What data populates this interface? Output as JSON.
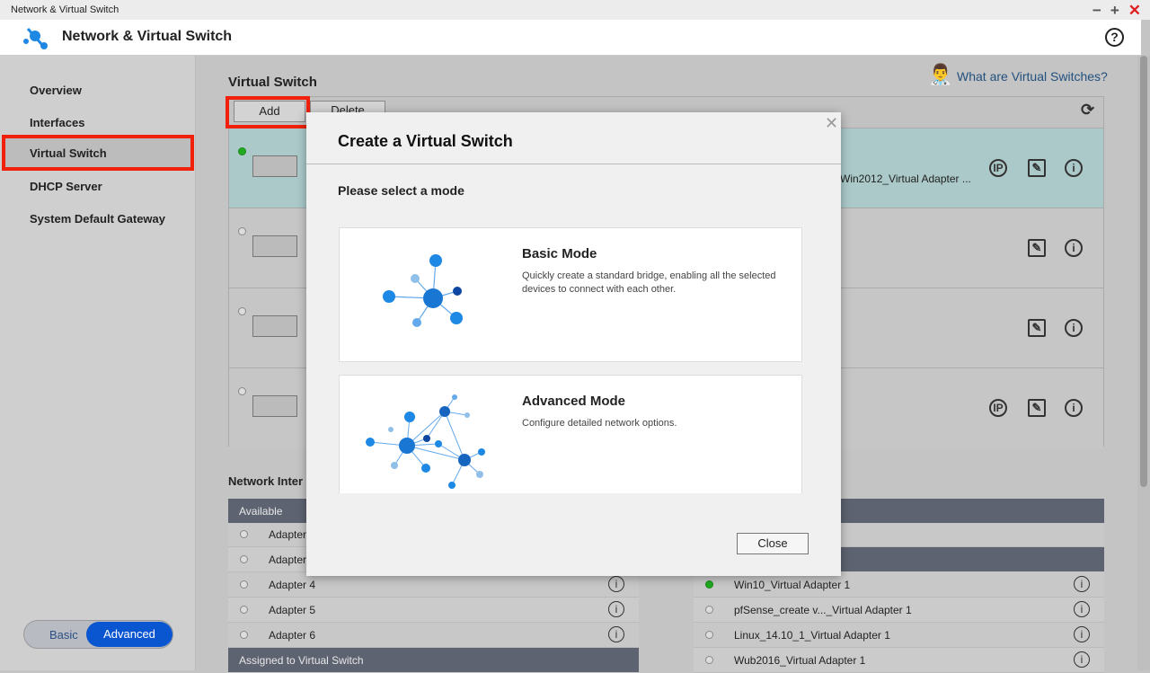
{
  "window": {
    "title": "Network & Virtual Switch",
    "controls": [
      "−",
      "+",
      "✕"
    ]
  },
  "header": {
    "app_title": "Network & Virtual Switch",
    "help": "?"
  },
  "sidebar": {
    "items": [
      {
        "label": "Overview"
      },
      {
        "label": "Interfaces"
      },
      {
        "label": "Virtual Switch",
        "selected": true
      },
      {
        "label": "DHCP Server"
      },
      {
        "label": "System Default Gateway"
      }
    ],
    "mode_toggle": {
      "basic": "Basic",
      "advanced": "Advanced",
      "active": "Advanced"
    }
  },
  "main": {
    "title": "Virtual Switch",
    "help_link": "What are Virtual Switches?",
    "toolbar": {
      "add": "Add",
      "delete": "Delete"
    },
    "switches": [
      {
        "status": "on",
        "adapter_text": "Win2012_Virtual Adapter ...",
        "ip_icon": true
      },
      {
        "status": "off",
        "ip_icon": false
      },
      {
        "status": "off",
        "ip_icon": false
      },
      {
        "status": "off",
        "ip_icon": true
      }
    ],
    "network_interfaces_label": "Network Inter",
    "available": {
      "header": "Available",
      "rows": [
        "Adapter",
        "Adapter",
        "Adapter 4",
        "Adapter 5",
        "Adapter 6"
      ]
    },
    "assigned_header": "Assigned to Virtual Switch",
    "virtual_adapters": [
      {
        "name": "Win10_Virtual Adapter 1",
        "status": "on"
      },
      {
        "name": "pfSense_create v..._Virtual Adapter 1",
        "status": "off"
      },
      {
        "name": "Linux_14.10_1_Virtual Adapter 1",
        "status": "off"
      },
      {
        "name": "Wub2016_Virtual Adapter 1",
        "status": "off"
      }
    ]
  },
  "dialog": {
    "title": "Create a Virtual Switch",
    "prompt": "Please select a mode",
    "modes": [
      {
        "title": "Basic Mode",
        "description": "Quickly create a standard bridge, enabling all the selected devices to connect with each other."
      },
      {
        "title": "Advanced Mode",
        "description": "Configure detailed network options."
      }
    ],
    "close": "Close"
  },
  "colors": {
    "highlight": "#f0200a",
    "accent": "#0a55d0",
    "selected_row": "#abc9c9",
    "node": "#1e88e5"
  }
}
